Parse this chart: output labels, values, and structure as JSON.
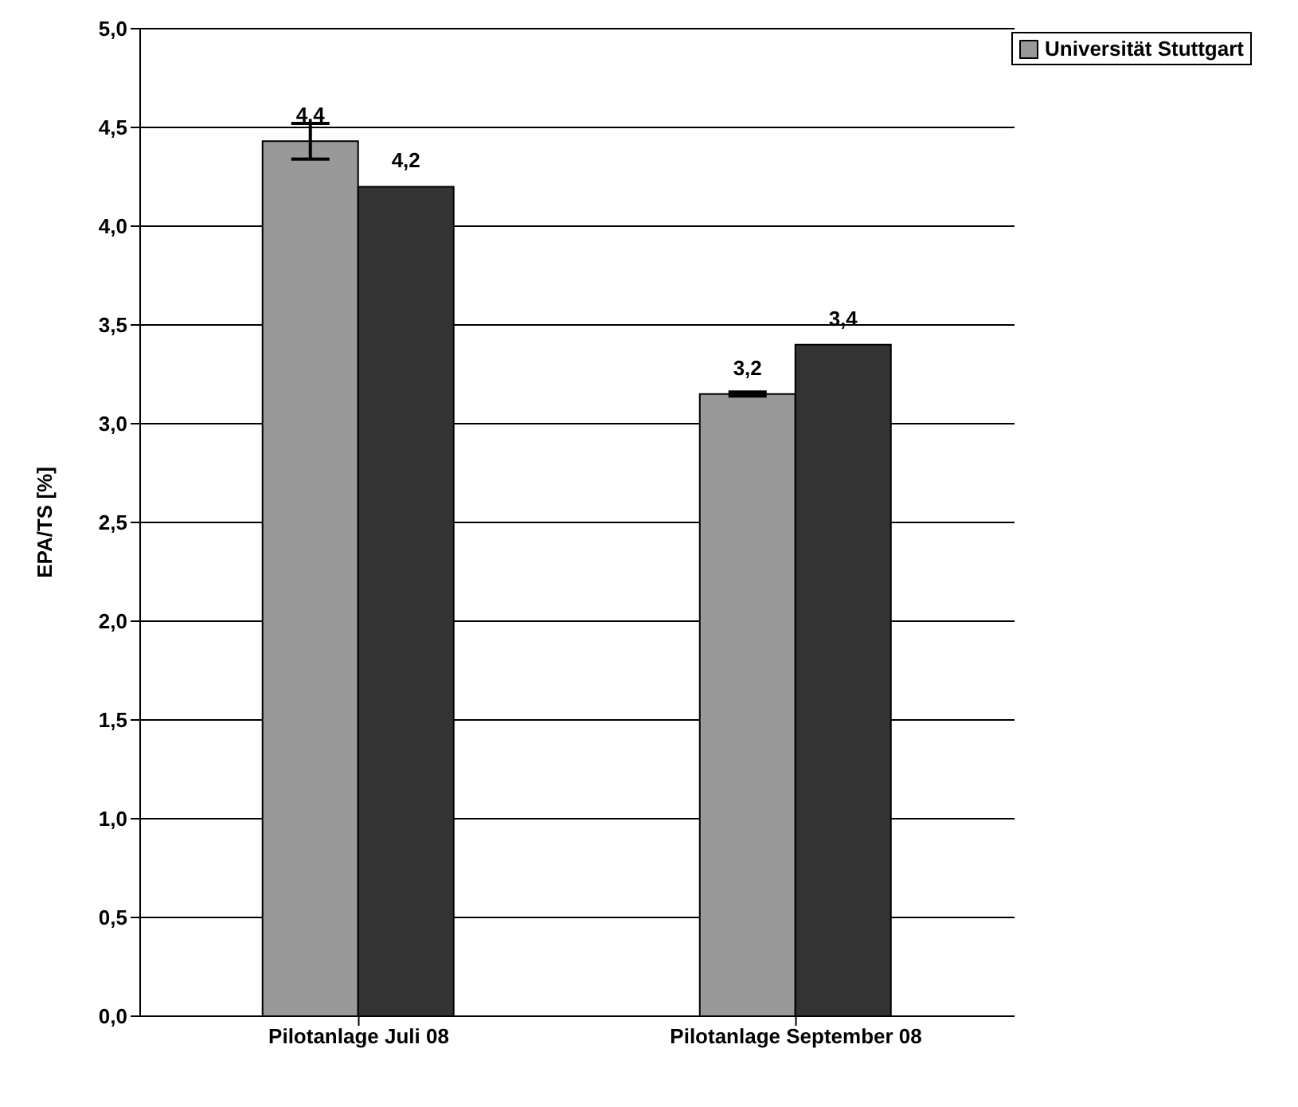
{
  "chart_data": {
    "type": "bar",
    "ylabel": "EPA/TS [%]",
    "categories": [
      "Pilotanlage Juli 08",
      "Pilotanlage September 08"
    ],
    "series": [
      {
        "name": "Universität Stuttgart",
        "color": "#999999",
        "values": [
          4.43,
          3.15
        ],
        "errors": [
          0.09,
          0.01
        ],
        "value_labels": [
          "4,4",
          "3,2"
        ]
      },
      {
        "color": "#333333",
        "values": [
          4.2,
          3.4
        ],
        "value_labels": [
          "4,2",
          "3,4"
        ]
      }
    ],
    "ylim": [
      0,
      5
    ],
    "yticks": [
      {
        "value": 0,
        "label": "0,0"
      },
      {
        "value": 0.5,
        "label": "0,5"
      },
      {
        "value": 1,
        "label": "1,0"
      },
      {
        "value": 1.5,
        "label": "1,5"
      },
      {
        "value": 2,
        "label": "2,0"
      },
      {
        "value": 2.5,
        "label": "2,5"
      },
      {
        "value": 3,
        "label": "3,0"
      },
      {
        "value": 3.5,
        "label": "3,5"
      },
      {
        "value": 4,
        "label": "4,0"
      },
      {
        "value": 4.5,
        "label": "4,5"
      },
      {
        "value": 5,
        "label": "5,0"
      }
    ],
    "grid": "y",
    "legend": "top right"
  }
}
